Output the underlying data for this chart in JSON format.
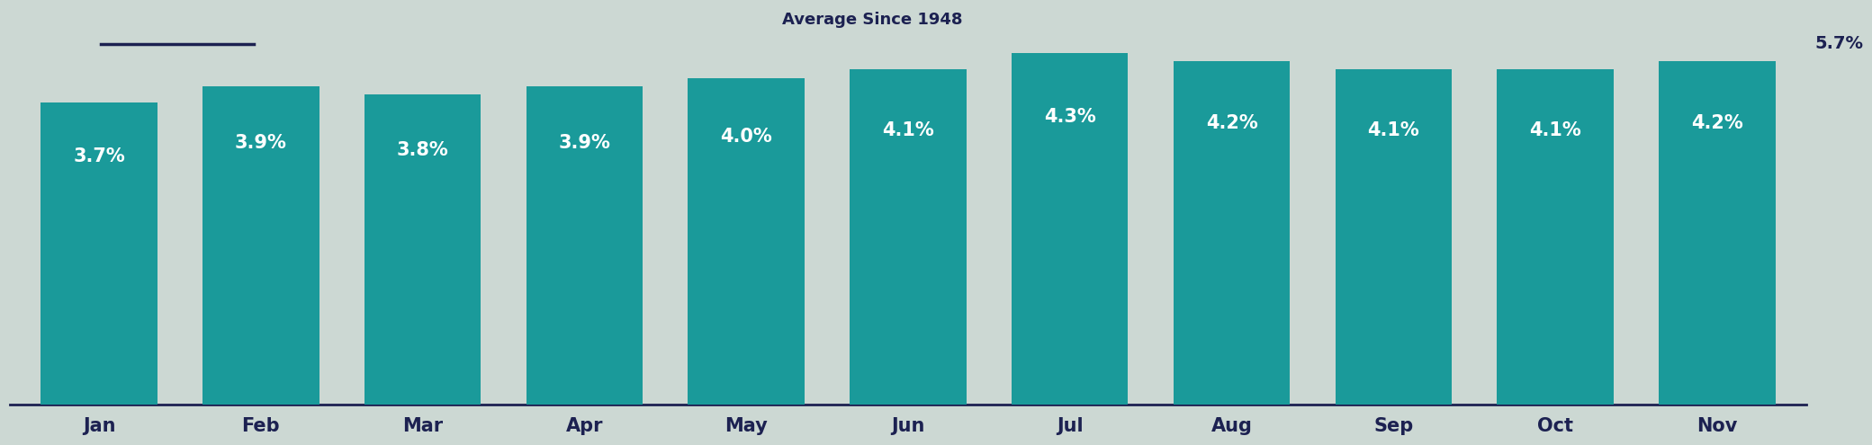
{
  "months": [
    "Jan",
    "Feb",
    "Mar",
    "Apr",
    "May",
    "Jun",
    "Jul",
    "Aug",
    "Sep",
    "Oct",
    "Nov"
  ],
  "values": [
    3.7,
    3.9,
    3.8,
    3.9,
    4.0,
    4.1,
    4.3,
    4.2,
    4.1,
    4.1,
    4.2
  ],
  "labels": [
    "3.7%",
    "3.9%",
    "3.8%",
    "3.9%",
    "4.0%",
    "4.1%",
    "4.3%",
    "4.2%",
    "4.1%",
    "4.1%",
    "4.2%"
  ],
  "bar_color": "#1a9a9a",
  "background_color": "#ccd8d3",
  "avg_line_y": 5.7,
  "avg_label": "Average Since 1948",
  "avg_value_label": "5.7%",
  "avg_line_color": "#1c2151",
  "ylabel_color": "#1c2151",
  "label_color_inside": "#ffffff",
  "tick_label_color": "#1c2151",
  "ylim": [
    0,
    4.8
  ],
  "bar_label_fontsize": 15,
  "avg_label_fontsize": 13,
  "avg_value_fontsize": 14,
  "ylabel_fontsize": 14,
  "xtick_fontsize": 15
}
